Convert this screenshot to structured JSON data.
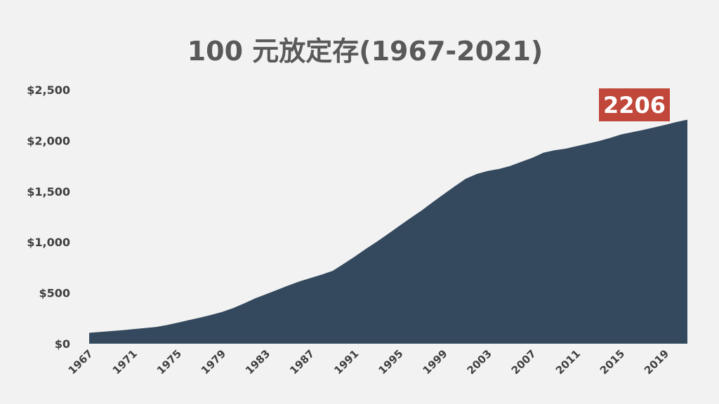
{
  "chart_data": {
    "type": "area",
    "title": "100 元放定存(1967-2021)",
    "xlabel": "",
    "ylabel": "",
    "ylim": [
      0,
      2500
    ],
    "y_ticks": [
      {
        "value": 0,
        "label": "$0"
      },
      {
        "value": 500,
        "label": "$500"
      },
      {
        "value": 1000,
        "label": "$1,000"
      },
      {
        "value": 1500,
        "label": "$1,500"
      },
      {
        "value": 2000,
        "label": "$2,000"
      },
      {
        "value": 2500,
        "label": "$2,500"
      }
    ],
    "x_range": [
      1967,
      2021
    ],
    "x_ticks": [
      "1967",
      "1971",
      "1975",
      "1979",
      "1983",
      "1987",
      "1991",
      "1995",
      "1999",
      "2003",
      "2007",
      "2011",
      "2015",
      "2019"
    ],
    "grid": false,
    "legend": "none",
    "fill_color": "#34495e",
    "callout": {
      "label": "2206",
      "year": 2021,
      "value": 2206,
      "color": "#c0473a"
    },
    "series": [
      {
        "x": [
          1967,
          1968,
          1969,
          1970,
          1971,
          1972,
          1973,
          1974,
          1975,
          1976,
          1977,
          1978,
          1979,
          1980,
          1981,
          1982,
          1983,
          1984,
          1985,
          1986,
          1987,
          1988,
          1989,
          1990,
          1991,
          1992,
          1993,
          1994,
          1995,
          1996,
          1997,
          1998,
          1999,
          2000,
          2001,
          2002,
          2003,
          2004,
          2005,
          2006,
          2007,
          2008,
          2009,
          2010,
          2011,
          2012,
          2013,
          2014,
          2015,
          2016,
          2017,
          2018,
          2019,
          2020,
          2021
        ],
        "values": [
          107,
          116,
          124,
          133,
          143,
          153,
          164,
          183,
          207,
          232,
          256,
          283,
          312,
          350,
          397,
          447,
          488,
          531,
          574,
          614,
          648,
          680,
          718,
          788,
          860,
          935,
          1006,
          1082,
          1160,
          1237,
          1310,
          1392,
          1472,
          1550,
          1625,
          1671,
          1702,
          1720,
          1750,
          1790,
          1830,
          1880,
          1905,
          1920,
          1945,
          1970,
          1995,
          2025,
          2060,
          2082,
          2105,
          2130,
          2155,
          2182,
          2206
        ]
      }
    ]
  }
}
